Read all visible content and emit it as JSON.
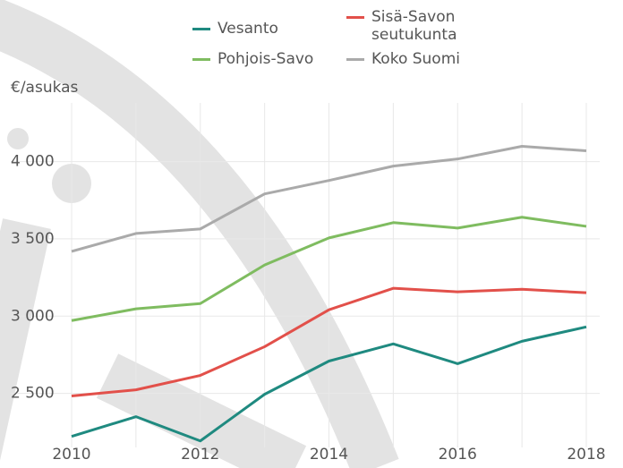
{
  "chart_data": {
    "type": "line",
    "y_label": "€/asukas",
    "x": [
      2010,
      2011,
      2012,
      2013,
      2014,
      2015,
      2016,
      2017,
      2018
    ],
    "xlim": [
      2010,
      2018
    ],
    "xticks": [
      2010,
      2012,
      2014,
      2016,
      2018
    ],
    "ylim": [
      2150,
      4380
    ],
    "yticks": [
      {
        "value": 2500,
        "label": "2 500"
      },
      {
        "value": 3000,
        "label": "3 000"
      },
      {
        "value": 3500,
        "label": "3 500"
      },
      {
        "value": 4000,
        "label": "4 000"
      }
    ],
    "grid": true,
    "series": [
      {
        "name": "Vesanto",
        "color": "#1f8a80",
        "values": [
          2221,
          2349,
          2192,
          2494,
          2709,
          2820,
          2692,
          2837,
          2930
        ]
      },
      {
        "name": "Sisä-Savon seutukunta",
        "color": "#e2504a",
        "values": [
          2483,
          2523,
          2616,
          2802,
          3041,
          3180,
          3157,
          3174,
          3151
        ]
      },
      {
        "name": "Pohjois-Savo",
        "color": "#7fbc60",
        "values": [
          2971,
          3047,
          3081,
          3331,
          3506,
          3605,
          3570,
          3640,
          3581
        ]
      },
      {
        "name": "Koko Suomi",
        "color": "#aaaaaa",
        "values": [
          3419,
          3535,
          3564,
          3791,
          3878,
          3971,
          4017,
          4099,
          4070
        ]
      }
    ]
  }
}
